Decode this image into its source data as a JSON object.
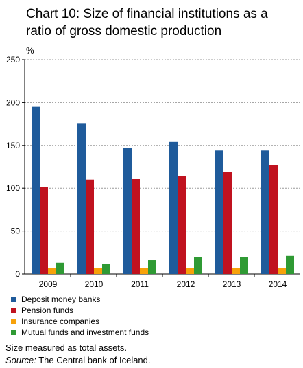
{
  "chart_data": {
    "type": "bar",
    "title_lines": [
      "Chart 10: Size of financial institutions as a",
      "ratio of gross domestic production"
    ],
    "ylabel": "%",
    "ylim": [
      0,
      250
    ],
    "yticks": [
      0,
      50,
      100,
      150,
      200,
      250
    ],
    "grid": true,
    "legend_position": "bottom",
    "categories": [
      "2009",
      "2010",
      "2011",
      "2012",
      "2013",
      "2014"
    ],
    "series": [
      {
        "name": "Deposit money banks",
        "color": "#1f5b9b",
        "values": [
          195,
          176,
          147,
          154,
          144,
          144
        ]
      },
      {
        "name": "Pension funds",
        "color": "#c0121f",
        "values": [
          101,
          110,
          111,
          114,
          119,
          127
        ]
      },
      {
        "name": "Insurance companies",
        "color": "#f7a20a",
        "values": [
          7,
          7,
          7,
          7,
          7,
          7
        ]
      },
      {
        "name": "Mutual funds and investment funds",
        "color": "#2f9a34",
        "values": [
          13,
          12,
          16,
          20,
          20,
          21
        ]
      }
    ]
  },
  "notes": {
    "line1": "Size measured as total assets.",
    "source_label": "Source:",
    "source_text": " The Central bank of Iceland."
  }
}
